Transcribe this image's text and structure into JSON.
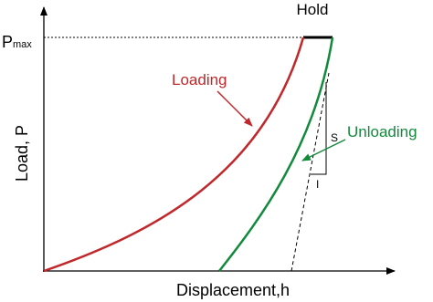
{
  "labels": {
    "hold": "Hold",
    "p": "P",
    "max": "max",
    "loading": "Loading",
    "unloading": "Unloading",
    "s": "S",
    "i": "I"
  },
  "axes": {
    "y_label": "Load, P",
    "x_label": "Displacement,h"
  }
}
